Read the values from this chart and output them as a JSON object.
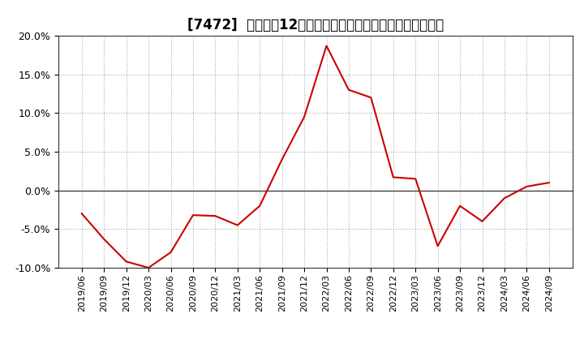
{
  "title": "[7472]  売上高の12か月移動合計の対前年同期増減率の推移",
  "line_color": "#cc0000",
  "background_color": "#ffffff",
  "plot_bg_color": "#ffffff",
  "grid_color": "#aaaaaa",
  "ylim": [
    -0.1,
    0.2
  ],
  "yticks": [
    -0.1,
    -0.05,
    0.0,
    0.05,
    0.1,
    0.15,
    0.2
  ],
  "dates": [
    "2019/06",
    "2019/09",
    "2019/12",
    "2020/03",
    "2020/06",
    "2020/09",
    "2020/12",
    "2021/03",
    "2021/06",
    "2021/09",
    "2021/12",
    "2022/03",
    "2022/06",
    "2022/09",
    "2022/12",
    "2023/03",
    "2023/06",
    "2023/09",
    "2023/12",
    "2024/03",
    "2024/06",
    "2024/09"
  ],
  "values": [
    -0.03,
    -0.063,
    -0.092,
    -0.1,
    -0.08,
    -0.032,
    -0.033,
    -0.045,
    -0.02,
    0.04,
    0.095,
    0.187,
    0.13,
    0.12,
    0.017,
    0.015,
    -0.072,
    -0.02,
    -0.04,
    -0.01,
    0.005,
    0.01
  ],
  "title_fontsize": 12,
  "tick_fontsize": 8,
  "ytick_fontsize": 9
}
